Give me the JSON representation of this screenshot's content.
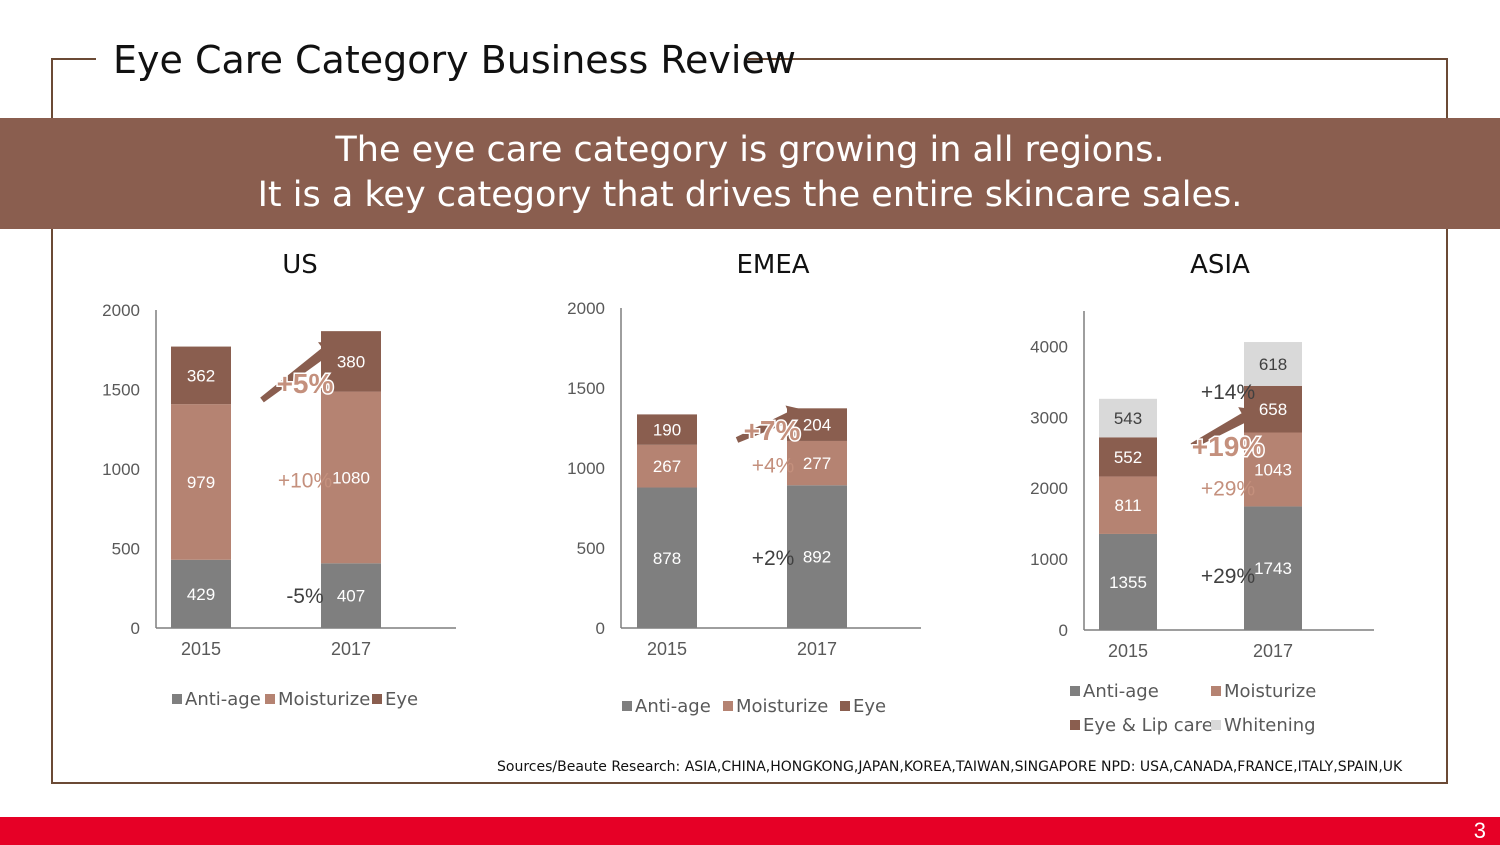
{
  "title": "Eye Care Category Business Review",
  "banner": {
    "line1": "The eye care category is growing in all regions.",
    "line2": "It is a key category that drives the entire skincare sales."
  },
  "sources": "Sources/Beaute Research: ASIA,CHINA,HONGKONG,JAPAN,KOREA,TAIWAN,SINGAPORE    NPD: USA,CANADA,FRANCE,ITALY,SPAIN,UK",
  "page_number": "3",
  "colors": {
    "frame": "#6b4a35",
    "banner": "#8a5e4f",
    "footer": "#e60026",
    "anti_age": "#7f7f7f",
    "moisturize": "#b58372",
    "eye": "#8a5e4f",
    "whitening": "#d9d9d9",
    "arrow": "#8a5e4f",
    "growth_text": "#c4907d"
  },
  "chart_data": [
    {
      "type": "bar",
      "stacked": true,
      "title": "US",
      "categories": [
        "2015",
        "2017"
      ],
      "ylim": [
        0,
        2000
      ],
      "yticks": [
        0,
        500,
        1000,
        1500,
        2000
      ],
      "series": [
        {
          "name": "Anti-age",
          "color": "#7f7f7f",
          "values": [
            429,
            407
          ],
          "growth": "-5%"
        },
        {
          "name": "Moisturize",
          "color": "#b58372",
          "values": [
            979,
            1080
          ],
          "growth": "+10%"
        },
        {
          "name": "Eye",
          "color": "#8a5e4f",
          "values": [
            362,
            380
          ],
          "growth": ""
        }
      ],
      "total_growth": "+5%",
      "legend": "bottom"
    },
    {
      "type": "bar",
      "stacked": true,
      "title": "EMEA",
      "categories": [
        "2015",
        "2017"
      ],
      "ylim": [
        0,
        2000
      ],
      "yticks": [
        0,
        500,
        1000,
        1500,
        2000
      ],
      "series": [
        {
          "name": "Anti-age",
          "color": "#7f7f7f",
          "values": [
            878,
            892
          ],
          "growth": "+2%"
        },
        {
          "name": "Moisturize",
          "color": "#b58372",
          "values": [
            267,
            277
          ],
          "growth": "+4%"
        },
        {
          "name": "Eye",
          "color": "#8a5e4f",
          "values": [
            190,
            204
          ],
          "growth": ""
        }
      ],
      "total_growth": "+7%",
      "legend": "bottom"
    },
    {
      "type": "bar",
      "stacked": true,
      "title": "ASIA",
      "categories": [
        "2015",
        "2017"
      ],
      "ylim": [
        0,
        4500
      ],
      "yticks": [
        0,
        1000,
        2000,
        3000,
        4000
      ],
      "series": [
        {
          "name": "Anti-age",
          "color": "#7f7f7f",
          "values": [
            1355,
            1743
          ],
          "growth": "+29%"
        },
        {
          "name": "Moisturize",
          "color": "#b58372",
          "values": [
            811,
            1043
          ],
          "growth": "+29%"
        },
        {
          "name": "Eye & Lip care",
          "color": "#8a5e4f",
          "values": [
            552,
            658
          ],
          "growth": ""
        },
        {
          "name": "Whitening",
          "color": "#d9d9d9",
          "values": [
            543,
            618
          ],
          "growth": "+14%"
        }
      ],
      "total_growth": "+19%",
      "legend": "bottom"
    }
  ]
}
